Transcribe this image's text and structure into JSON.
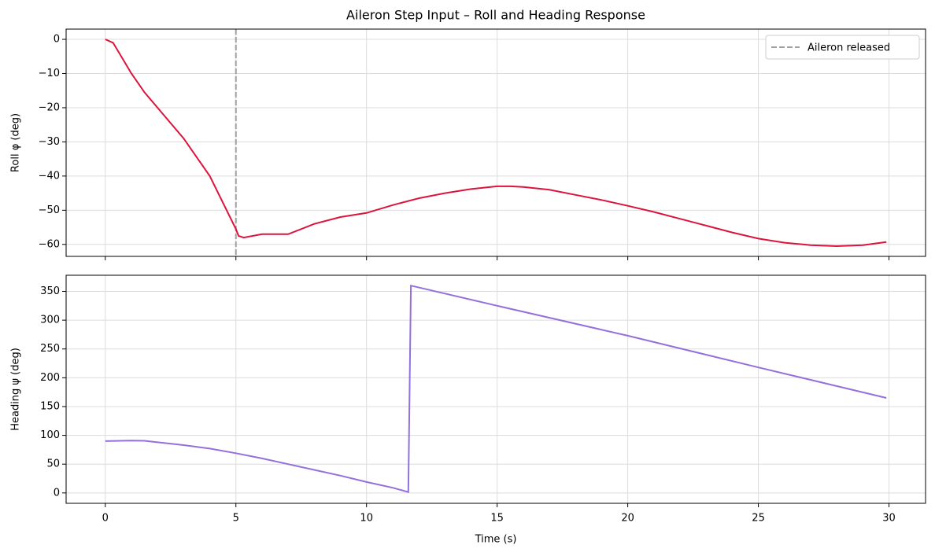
{
  "chart_data": [
    {
      "type": "line",
      "title": "Aileron Step Input – Roll and Heading Response",
      "ylabel": "Roll φ (deg)",
      "xlim": [
        -1.5,
        31.4
      ],
      "ylim": [
        -63.5,
        3
      ],
      "xticks": [
        0,
        5,
        10,
        15,
        20,
        25,
        30
      ],
      "show_xticklabels": false,
      "yticks": [
        0,
        {
          "value": -10,
          "label": "−10"
        },
        {
          "value": -20,
          "label": "−20"
        },
        {
          "value": -30,
          "label": "−30"
        },
        {
          "value": -40,
          "label": "−40"
        },
        {
          "value": -50,
          "label": "−50"
        },
        {
          "value": -60,
          "label": "−60"
        }
      ],
      "grid": true,
      "legend": "upper right",
      "vline": {
        "x": 5,
        "label": "Aileron released",
        "color": "#a0a0a0"
      },
      "series": [
        {
          "color": "#dc143c",
          "x": [
            0,
            0.3,
            1,
            1.5,
            2,
            3,
            4,
            5,
            5.1,
            5.3,
            6,
            7,
            8,
            9,
            10,
            11,
            12,
            13,
            14,
            15,
            15.5,
            16,
            17,
            18,
            19,
            20,
            21,
            22,
            23,
            24,
            25,
            26,
            27,
            28,
            29,
            29.9
          ],
          "values": [
            0,
            -1,
            -10,
            -15.5,
            -20,
            -29,
            -40,
            -55.5,
            -57.5,
            -58,
            -57,
            -57,
            -54,
            -52,
            -50.8,
            -48.5,
            -46.5,
            -45,
            -43.8,
            -43,
            -43,
            -43.2,
            -44,
            -45.5,
            -47,
            -48.7,
            -50.5,
            -52.5,
            -54.5,
            -56.5,
            -58.3,
            -59.5,
            -60.2,
            -60.5,
            -60.2,
            -59.3
          ]
        }
      ]
    },
    {
      "type": "line",
      "xlabel": "Time (s)",
      "ylabel": "Heading ψ (deg)",
      "xlim": [
        -1.5,
        31.4
      ],
      "ylim": [
        -18,
        378
      ],
      "xticks": [
        0,
        5,
        10,
        15,
        20,
        25,
        30
      ],
      "show_xticklabels": true,
      "yticks": [
        0,
        50,
        100,
        150,
        200,
        250,
        300,
        350
      ],
      "grid": true,
      "series": [
        {
          "color": "#9370db",
          "x": [
            0,
            1,
            1.5,
            2,
            3,
            4,
            5,
            6,
            7,
            8,
            9,
            10,
            11,
            11.6,
            11.7,
            15,
            20,
            25,
            29.9
          ],
          "values": [
            90,
            91,
            90.5,
            88,
            83,
            77,
            69,
            60,
            50,
            40,
            30,
            19,
            9,
            1.5,
            360,
            325,
            273,
            218,
            165
          ]
        }
      ]
    }
  ]
}
